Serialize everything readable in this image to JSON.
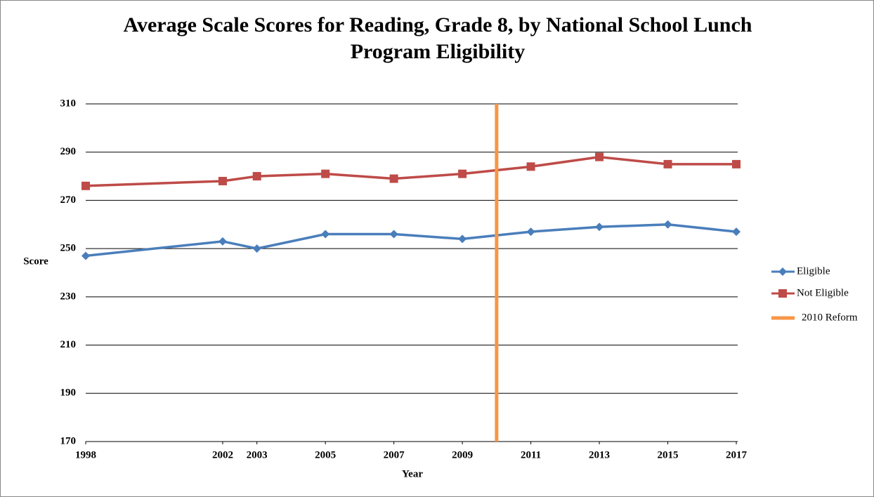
{
  "chart_data": {
    "type": "line",
    "title": "Average Scale Scores for Reading, Grade 8, by National School Lunch Program Eligibility",
    "x_label": "Year",
    "y_label": "Score",
    "x": [
      1998,
      2002,
      2003,
      2005,
      2007,
      2009,
      2011,
      2013,
      2015,
      2017
    ],
    "xlim": [
      1998,
      2017
    ],
    "xticks": [
      1998,
      2002,
      2003,
      2005,
      2007,
      2009,
      2011,
      2013,
      2015,
      2017
    ],
    "ylim": [
      170,
      310
    ],
    "yticks": [
      170,
      190,
      210,
      230,
      250,
      270,
      290,
      310
    ],
    "grid": true,
    "legend": "right",
    "series": [
      {
        "name": "Eligible",
        "color": "#4a7ebb",
        "marker": "diamond",
        "values": [
          247,
          253,
          250,
          256,
          256,
          254,
          257,
          259,
          260,
          257
        ]
      },
      {
        "name": "Not Eligible",
        "color": "#be4b48",
        "marker": "square",
        "values": [
          276,
          278,
          280,
          281,
          279,
          281,
          284,
          288,
          285,
          285
        ]
      },
      {
        "name": "2010 Reform",
        "color": "#f79646",
        "marker": "none",
        "x": [
          2010,
          2010
        ],
        "values": [
          310,
          170
        ]
      }
    ]
  }
}
